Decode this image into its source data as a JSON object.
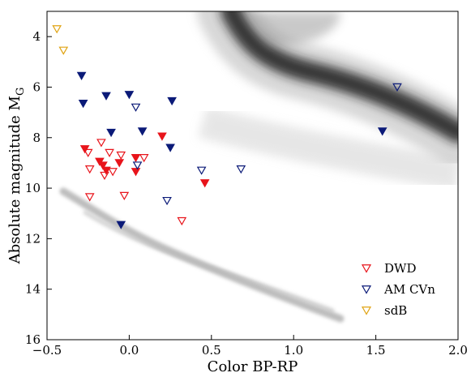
{
  "chart_data": {
    "type": "scatter",
    "xlabel": "Color BP-RP",
    "ylabel": "Absolute magnitude M_G",
    "xlim": [
      -0.5,
      2.0
    ],
    "ylim": [
      16,
      3
    ],
    "y_inverted": true,
    "x_ticks": [
      -0.5,
      0.0,
      0.5,
      1.0,
      1.5,
      2.0
    ],
    "x_tick_labels": [
      "−0.5",
      "0.0",
      "0.5",
      "1.0",
      "1.5",
      "2.0"
    ],
    "y_ticks": [
      4,
      6,
      8,
      10,
      12,
      14,
      16
    ],
    "y_tick_labels": [
      "4",
      "6",
      "8",
      "10",
      "12",
      "14",
      "16"
    ],
    "grid": false,
    "legend_position": "bottom-right",
    "background": "grayscale density of field stars (main sequence and white dwarf sequence)",
    "series": [
      {
        "name": "DWD",
        "color": "#e8141b",
        "marker": "triangle-down",
        "points": [
          {
            "x": -0.27,
            "y": 8.45,
            "filled": true
          },
          {
            "x": -0.25,
            "y": 8.6,
            "filled": false
          },
          {
            "x": -0.17,
            "y": 8.2,
            "filled": false
          },
          {
            "x": -0.12,
            "y": 8.6,
            "filled": false
          },
          {
            "x": -0.05,
            "y": 8.7,
            "filled": false
          },
          {
            "x": 0.09,
            "y": 8.8,
            "filled": false
          },
          {
            "x": 0.04,
            "y": 8.8,
            "filled": true
          },
          {
            "x": 0.2,
            "y": 7.95,
            "filled": true
          },
          {
            "x": -0.18,
            "y": 8.95,
            "filled": true
          },
          {
            "x": -0.06,
            "y": 9.0,
            "filled": true
          },
          {
            "x": -0.24,
            "y": 9.25,
            "filled": false
          },
          {
            "x": -0.16,
            "y": 9.1,
            "filled": true
          },
          {
            "x": -0.14,
            "y": 9.3,
            "filled": true
          },
          {
            "x": -0.1,
            "y": 9.35,
            "filled": false
          },
          {
            "x": -0.15,
            "y": 9.5,
            "filled": false
          },
          {
            "x": 0.04,
            "y": 9.35,
            "filled": true
          },
          {
            "x": -0.03,
            "y": 10.3,
            "filled": false
          },
          {
            "x": -0.24,
            "y": 10.35,
            "filled": false
          },
          {
            "x": 0.46,
            "y": 9.8,
            "filled": true
          },
          {
            "x": 0.32,
            "y": 11.3,
            "filled": false
          }
        ]
      },
      {
        "name": "AM CVn",
        "color": "#0b1a78",
        "marker": "triangle-down",
        "points": [
          {
            "x": -0.29,
            "y": 5.55,
            "filled": true
          },
          {
            "x": -0.28,
            "y": 6.65,
            "filled": true
          },
          {
            "x": -0.14,
            "y": 6.35,
            "filled": true
          },
          {
            "x": 0.0,
            "y": 6.3,
            "filled": true
          },
          {
            "x": 0.04,
            "y": 6.8,
            "filled": false
          },
          {
            "x": 0.26,
            "y": 6.55,
            "filled": true
          },
          {
            "x": -0.11,
            "y": 7.8,
            "filled": true
          },
          {
            "x": 0.08,
            "y": 7.75,
            "filled": true
          },
          {
            "x": 0.25,
            "y": 8.4,
            "filled": true
          },
          {
            "x": 0.05,
            "y": 9.1,
            "filled": false
          },
          {
            "x": 0.44,
            "y": 9.3,
            "filled": false
          },
          {
            "x": 0.68,
            "y": 9.25,
            "filled": false
          },
          {
            "x": 0.23,
            "y": 10.5,
            "filled": false
          },
          {
            "x": -0.05,
            "y": 11.45,
            "filled": true
          },
          {
            "x": 1.54,
            "y": 7.75,
            "filled": true
          },
          {
            "x": 1.63,
            "y": 6.0,
            "filled": false
          }
        ]
      },
      {
        "name": "sdB",
        "color": "#e0a414",
        "marker": "triangle-down",
        "points": [
          {
            "x": -0.44,
            "y": 3.7,
            "filled": false
          },
          {
            "x": -0.4,
            "y": 4.55,
            "filled": false
          }
        ]
      }
    ]
  }
}
